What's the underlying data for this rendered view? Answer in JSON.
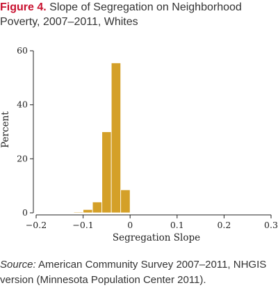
{
  "figure": {
    "label": "Figure 4.",
    "title": "Slope of Segregation on Neighborhood Poverty, 2007–2011, Whites"
  },
  "source": {
    "label": "Source:",
    "text": "American Community Survey 2007–2011, NHGIS version (Minnesota Population Center 2011)."
  },
  "chart_data": {
    "type": "bar",
    "title": "",
    "xlabel": "Segregation Slope",
    "ylabel": "Percent",
    "xlim": [
      -0.2,
      0.3
    ],
    "ylim": [
      0,
      60
    ],
    "xticks": [
      -0.2,
      -0.1,
      0,
      0.1,
      0.2,
      0.3
    ],
    "xtick_labels": [
      "−0.2",
      "−0.1",
      "0",
      "0.1",
      "0.2",
      "0.3"
    ],
    "yticks": [
      0,
      20,
      40,
      60
    ],
    "ytick_labels": [
      "0",
      "20",
      "40",
      "60"
    ],
    "bin_width": 0.02,
    "bins": [
      {
        "x0": -0.12,
        "x1": -0.1,
        "value": 0.3
      },
      {
        "x0": -0.1,
        "x1": -0.08,
        "value": 1.2
      },
      {
        "x0": -0.08,
        "x1": -0.06,
        "value": 4.0
      },
      {
        "x0": -0.06,
        "x1": -0.04,
        "value": 30.0
      },
      {
        "x0": -0.04,
        "x1": -0.02,
        "value": 55.5
      },
      {
        "x0": -0.02,
        "x1": 0.0,
        "value": 8.5
      }
    ],
    "bar_color": "#d4a028",
    "grid": false
  }
}
